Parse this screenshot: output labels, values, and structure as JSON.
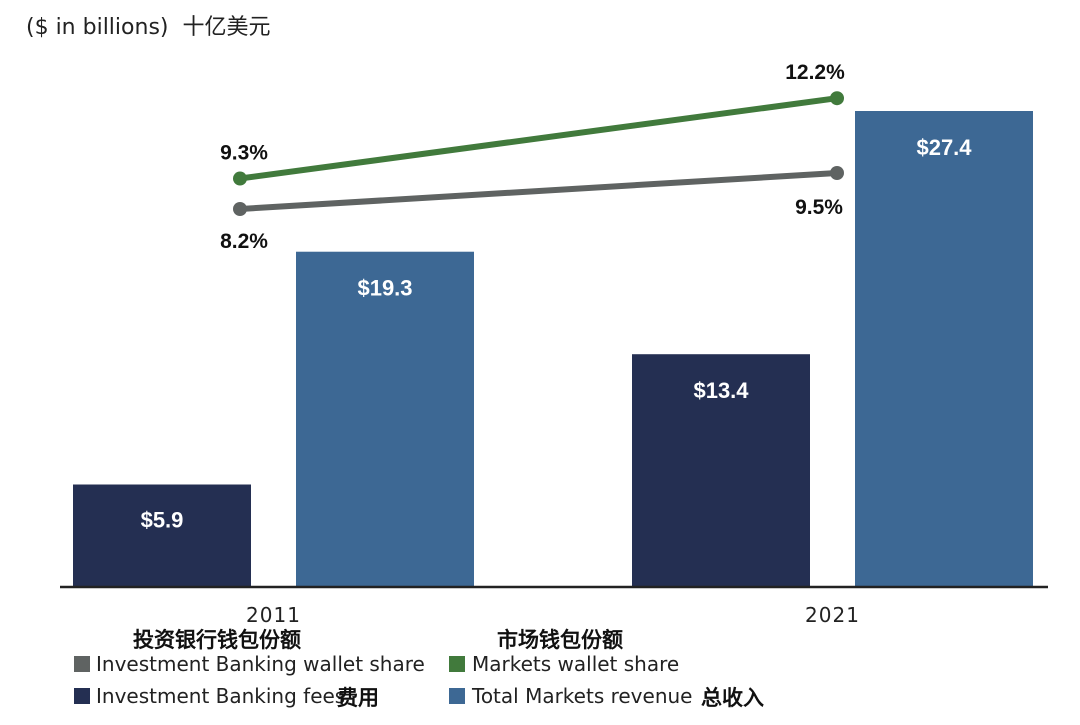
{
  "unit_label": "($ in billions)",
  "unit_label_cn": "十亿美元",
  "colors": {
    "ib_fees": "#242f52",
    "markets_revenue": "#3d6894",
    "ib_wallet": "#5f6362",
    "markets_wallet": "#417a3c"
  },
  "chart_data": {
    "type": "bar",
    "categories": [
      "2011",
      "2021"
    ],
    "series": [
      {
        "name": "Investment Banking fees",
        "name_cn": "费用",
        "values": [
          5.9,
          13.4
        ],
        "labels": [
          "$5.9",
          "$13.4"
        ]
      },
      {
        "name": "Total Markets revenue",
        "name_cn": "总收入",
        "values": [
          19.3,
          27.4
        ],
        "labels": [
          "$19.3",
          "$27.4"
        ]
      }
    ],
    "lines": [
      {
        "name": "Investment Banking wallet share",
        "name_cn": "投资银行钱包份额",
        "values": [
          8.2,
          9.5
        ],
        "labels": [
          "8.2%",
          "9.5%"
        ]
      },
      {
        "name": "Markets wallet share",
        "name_cn": "市场钱包份额",
        "values": [
          9.3,
          12.2
        ],
        "labels": [
          "9.3%",
          "12.2%"
        ]
      }
    ],
    "ylim": [
      0,
      29
    ],
    "title": "",
    "xlabel": "",
    "ylabel": ""
  }
}
